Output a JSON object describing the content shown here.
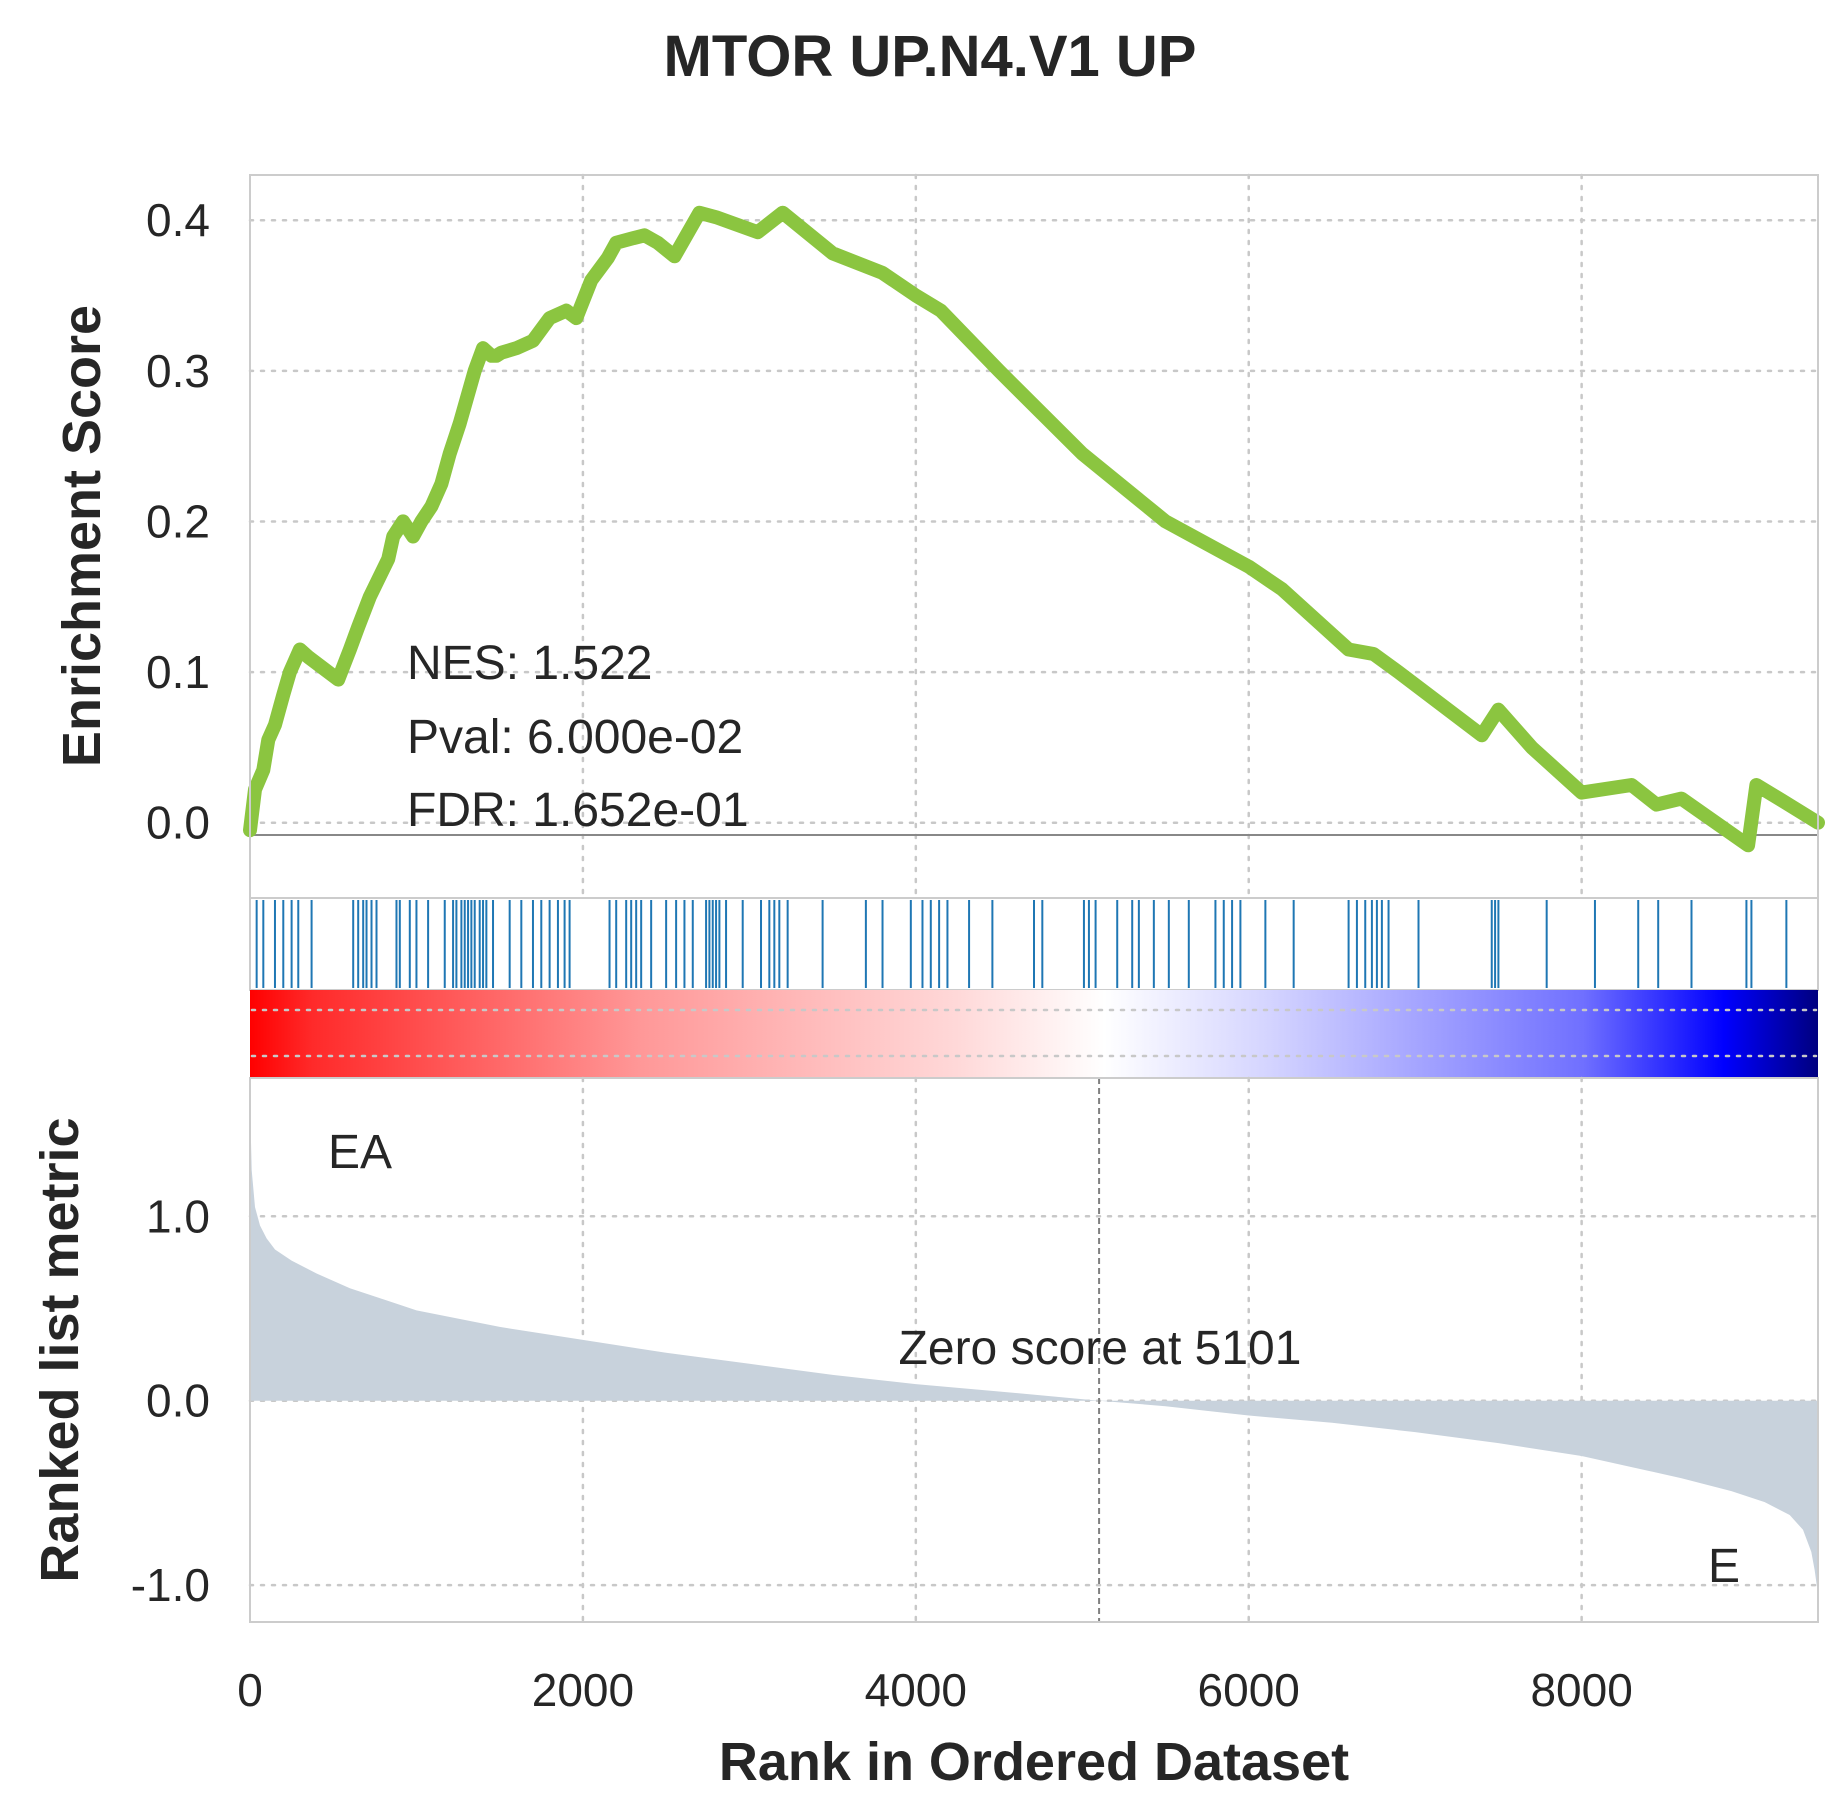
{
  "chart_data": {
    "type": "line",
    "title": "MTOR UP.N4.V1 UP",
    "xlabel": "Rank in Ordered Dataset",
    "xlim": [
      0,
      9420
    ],
    "x_ticks": [
      "0",
      "2000",
      "4000",
      "6000",
      "8000"
    ],
    "grid": true,
    "enrichment": {
      "ylabel": "Enrichment Score",
      "ylim": [
        -0.05,
        0.43
      ],
      "y_ticks": [
        "0.0",
        "0.1",
        "0.2",
        "0.3",
        "0.4"
      ],
      "line_color": "#8bc540",
      "x": [
        0,
        30,
        80,
        110,
        150,
        200,
        240,
        300,
        350,
        530,
        600,
        650,
        720,
        830,
        860,
        920,
        980,
        1030,
        1090,
        1150,
        1200,
        1260,
        1350,
        1400,
        1450,
        1480,
        1510,
        1600,
        1700,
        1800,
        1900,
        1960,
        2050,
        2150,
        2200,
        2300,
        2370,
        2450,
        2550,
        2700,
        2800,
        2900,
        3050,
        3200,
        3500,
        3800,
        4000,
        4150,
        4500,
        5000,
        5500,
        6000,
        6200,
        6600,
        6750,
        6900,
        7400,
        7500,
        7700,
        8000,
        8300,
        8450,
        8600,
        9000,
        9050,
        9200,
        9420
      ],
      "values": [
        -0.005,
        0.022,
        0.035,
        0.055,
        0.065,
        0.085,
        0.1,
        0.115,
        0.11,
        0.095,
        0.115,
        0.13,
        0.15,
        0.175,
        0.19,
        0.2,
        0.19,
        0.2,
        0.21,
        0.225,
        0.245,
        0.265,
        0.3,
        0.315,
        0.31,
        0.31,
        0.312,
        0.315,
        0.32,
        0.335,
        0.34,
        0.335,
        0.36,
        0.375,
        0.385,
        0.388,
        0.39,
        0.385,
        0.376,
        0.405,
        0.402,
        0.398,
        0.392,
        0.405,
        0.378,
        0.365,
        0.35,
        0.34,
        0.3,
        0.245,
        0.2,
        0.17,
        0.155,
        0.115,
        0.112,
        0.1,
        0.058,
        0.075,
        0.05,
        0.02,
        0.025,
        0.012,
        0.016,
        -0.015,
        0.025,
        0.015,
        0.0
      ]
    },
    "gene_hits": {
      "color": "#1f77b4",
      "positions": [
        40,
        80,
        150,
        200,
        250,
        290,
        370,
        620,
        650,
        680,
        700,
        730,
        760,
        880,
        900,
        960,
        1000,
        1070,
        1170,
        1220,
        1240,
        1270,
        1290,
        1310,
        1330,
        1350,
        1380,
        1400,
        1420,
        1460,
        1560,
        1630,
        1700,
        1750,
        1800,
        1850,
        1890,
        1920,
        2160,
        2200,
        2260,
        2290,
        2320,
        2350,
        2410,
        2500,
        2560,
        2610,
        2660,
        2740,
        2760,
        2780,
        2800,
        2820,
        2860,
        2960,
        3070,
        3120,
        3150,
        3180,
        3230,
        3440,
        3700,
        3800,
        3970,
        4040,
        4090,
        4140,
        4190,
        4320,
        4460,
        4710,
        4760,
        5010,
        5040,
        5080,
        5210,
        5300,
        5340,
        5430,
        5520,
        5640,
        5800,
        5850,
        5900,
        5950,
        6100,
        6270,
        6600,
        6650,
        6700,
        6740,
        6770,
        6800,
        6840,
        7020,
        7460,
        7480,
        7500,
        7790,
        8080,
        8340,
        8460,
        8660,
        8990,
        9020,
        9230
      ]
    },
    "ranked_metric": {
      "ylabel": "Ranked list metric",
      "ylim": [
        -1.2,
        1.75
      ],
      "y_ticks": [
        "-1.0",
        "0.0",
        "1.0"
      ],
      "fill_color": "#c8d2dc",
      "x": [
        0,
        10,
        30,
        60,
        100,
        150,
        250,
        400,
        600,
        800,
        1000,
        1500,
        2000,
        2500,
        3000,
        3500,
        4000,
        4500,
        5101,
        5500,
        6000,
        6500,
        7000,
        7500,
        8000,
        8300,
        8600,
        8900,
        9100,
        9250,
        9330,
        9380,
        9400,
        9420
      ],
      "values": [
        1.62,
        1.25,
        1.05,
        0.95,
        0.88,
        0.82,
        0.76,
        0.69,
        0.61,
        0.55,
        0.49,
        0.4,
        0.33,
        0.26,
        0.2,
        0.14,
        0.09,
        0.05,
        0.0,
        -0.03,
        -0.08,
        -0.12,
        -0.17,
        -0.23,
        -0.3,
        -0.36,
        -0.42,
        -0.49,
        -0.55,
        -0.62,
        -0.7,
        -0.82,
        -0.92,
        -1.05
      ]
    },
    "zero_score_rank": 5101,
    "annotations": {
      "nes": "NES: 1.522",
      "pval": "Pval: 6.000e-02",
      "fdr": "FDR: 1.652e-01",
      "zero_score": "Zero score at 5101",
      "pos_label": "EA",
      "neg_label": "E",
      "pos_color": "#ff0000",
      "neg_color": "#0000ff"
    }
  }
}
